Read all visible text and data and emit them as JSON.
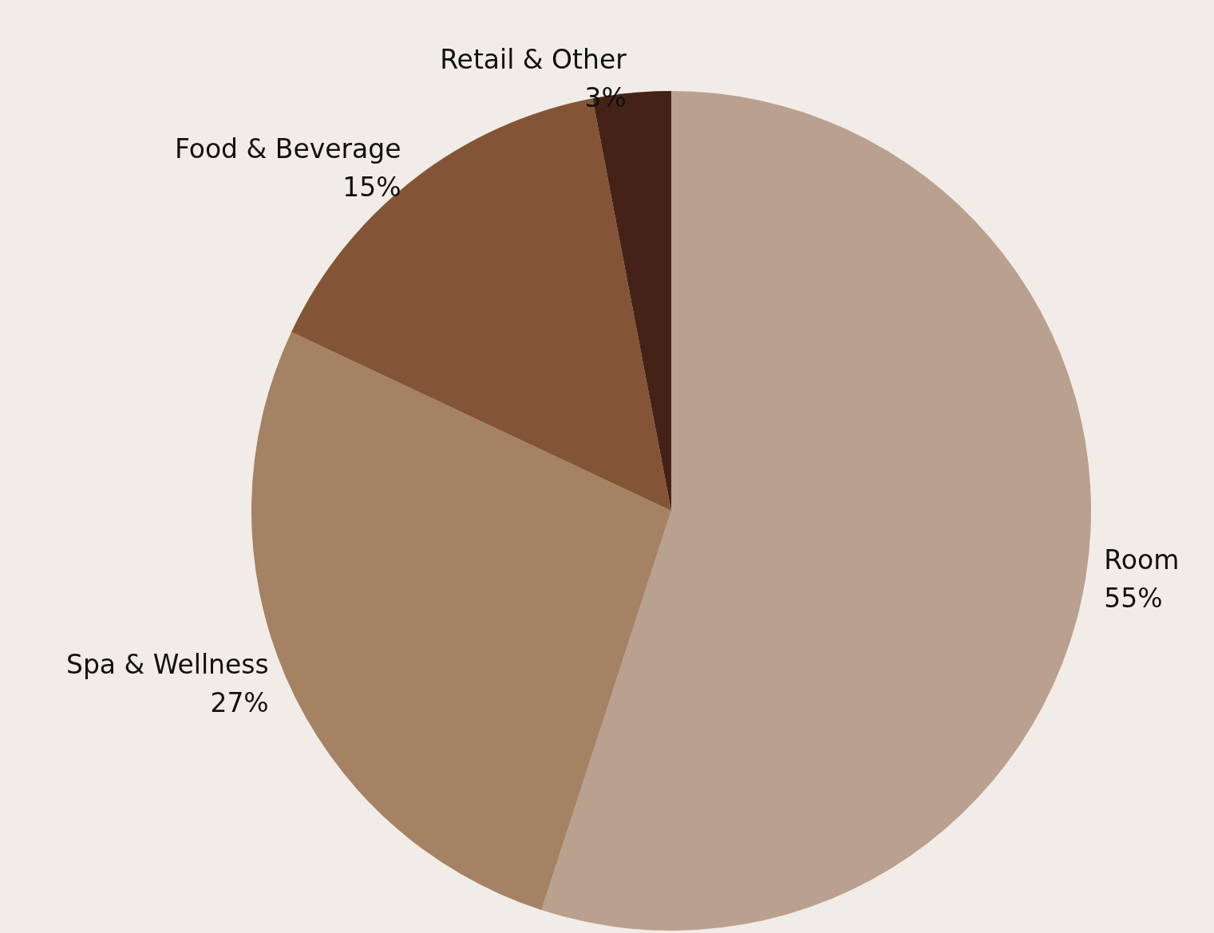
{
  "chart_data": {
    "type": "pie",
    "categories": [
      "Room",
      "Spa & Wellness",
      "Food & Beverage",
      "Retail & Other"
    ],
    "values": [
      55,
      27,
      15,
      3
    ],
    "colors": [
      "#baa08e",
      "#a48263",
      "#835536",
      "#452217"
    ],
    "value_labels": [
      "55%",
      "27%",
      "15%",
      "3%"
    ],
    "legend": false
  }
}
